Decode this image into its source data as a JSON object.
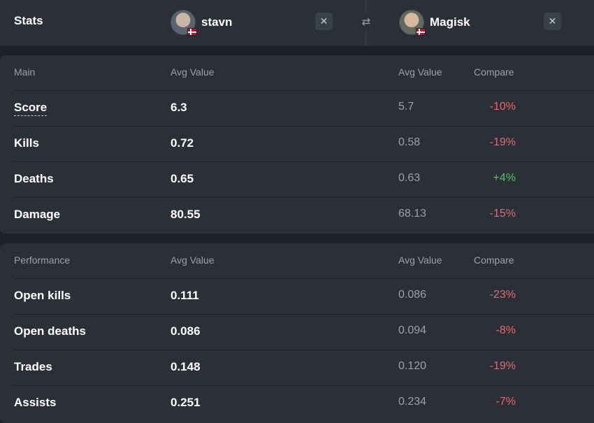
{
  "header": {
    "stats_label": "Stats",
    "swap_icon": "swap-arrows-icon",
    "close_icon": "close-icon",
    "player1": {
      "name": "stavn",
      "flag": "denmark-flag"
    },
    "player2": {
      "name": "Magisk",
      "flag": "denmark-flag"
    }
  },
  "main": {
    "title": "Main",
    "col_avg1": "Avg Value",
    "col_avg2": "Avg Value",
    "col_compare": "Compare",
    "rows": [
      {
        "label": "Score",
        "v1": "6.3",
        "v2": "5.7",
        "compare": "-10%",
        "trend": "neg"
      },
      {
        "label": "Kills",
        "v1": "0.72",
        "v2": "0.58",
        "compare": "-19%",
        "trend": "neg"
      },
      {
        "label": "Deaths",
        "v1": "0.65",
        "v2": "0.63",
        "compare": "+4%",
        "trend": "pos"
      },
      {
        "label": "Damage",
        "v1": "80.55",
        "v2": "68.13",
        "compare": "-15%",
        "trend": "neg"
      }
    ]
  },
  "performance": {
    "title": "Performance",
    "col_avg1": "Avg Value",
    "col_avg2": "Avg Value",
    "col_compare": "Compare",
    "rows": [
      {
        "label": "Open kills",
        "v1": "0.111",
        "v2": "0.086",
        "compare": "-23%",
        "trend": "neg"
      },
      {
        "label": "Open deaths",
        "v1": "0.086",
        "v2": "0.094",
        "compare": "-8%",
        "trend": "neg"
      },
      {
        "label": "Trades",
        "v1": "0.148",
        "v2": "0.120",
        "compare": "-19%",
        "trend": "neg"
      },
      {
        "label": "Assists",
        "v1": "0.251",
        "v2": "0.234",
        "compare": "-7%",
        "trend": "neg"
      }
    ]
  },
  "colors": {
    "background": "#1e2228",
    "panel": "#2b3038",
    "negative": "#e36b6b",
    "positive": "#59c26a"
  }
}
